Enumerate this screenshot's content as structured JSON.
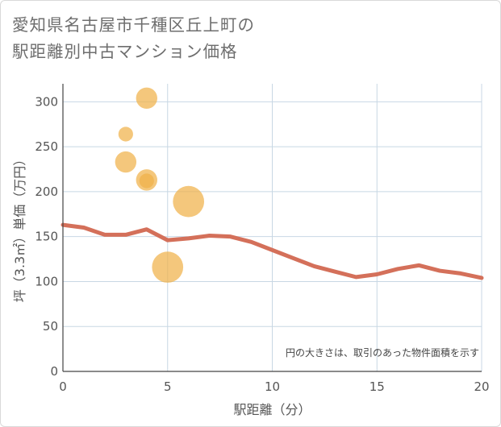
{
  "title_lines": [
    "愛知県名古屋市千種区丘上町の",
    "駅距離別中古マンション価格"
  ],
  "chart_data": {
    "type": "scatter",
    "title": "愛知県名古屋市千種区丘上町の駅距離別中古マンション価格",
    "xlabel": "駅距離（分）",
    "ylabel": "坪（3.3㎡）単価（万円）",
    "xlim": [
      0,
      20
    ],
    "ylim": [
      0,
      320
    ],
    "xticks": [
      0,
      5,
      10,
      15,
      20
    ],
    "yticks": [
      0,
      50,
      100,
      150,
      200,
      250,
      300
    ],
    "grid": true,
    "note": "円の大きさは、取引のあった物件面積を示す",
    "colors": {
      "bubble": "#f0b24a",
      "line": "#d4705a",
      "grid": "#c8d7e4"
    },
    "bubbles": [
      {
        "x": 4,
        "y": 304,
        "size": 3
      },
      {
        "x": 3,
        "y": 264,
        "size": 1
      },
      {
        "x": 3,
        "y": 233,
        "size": 3
      },
      {
        "x": 4,
        "y": 213,
        "size": 3
      },
      {
        "x": 4,
        "y": 212,
        "size": 1
      },
      {
        "x": 6,
        "y": 189,
        "size": 8
      },
      {
        "x": 5,
        "y": 116,
        "size": 8
      }
    ],
    "trend": {
      "x": [
        0,
        1,
        2,
        3,
        4,
        5,
        6,
        7,
        8,
        9,
        10,
        11,
        12,
        13,
        14,
        15,
        16,
        17,
        18,
        19,
        20
      ],
      "y": [
        163,
        160,
        152,
        152,
        158,
        146,
        148,
        151,
        150,
        144,
        135,
        126,
        117,
        111,
        105,
        108,
        114,
        118,
        112,
        109,
        104
      ]
    }
  }
}
